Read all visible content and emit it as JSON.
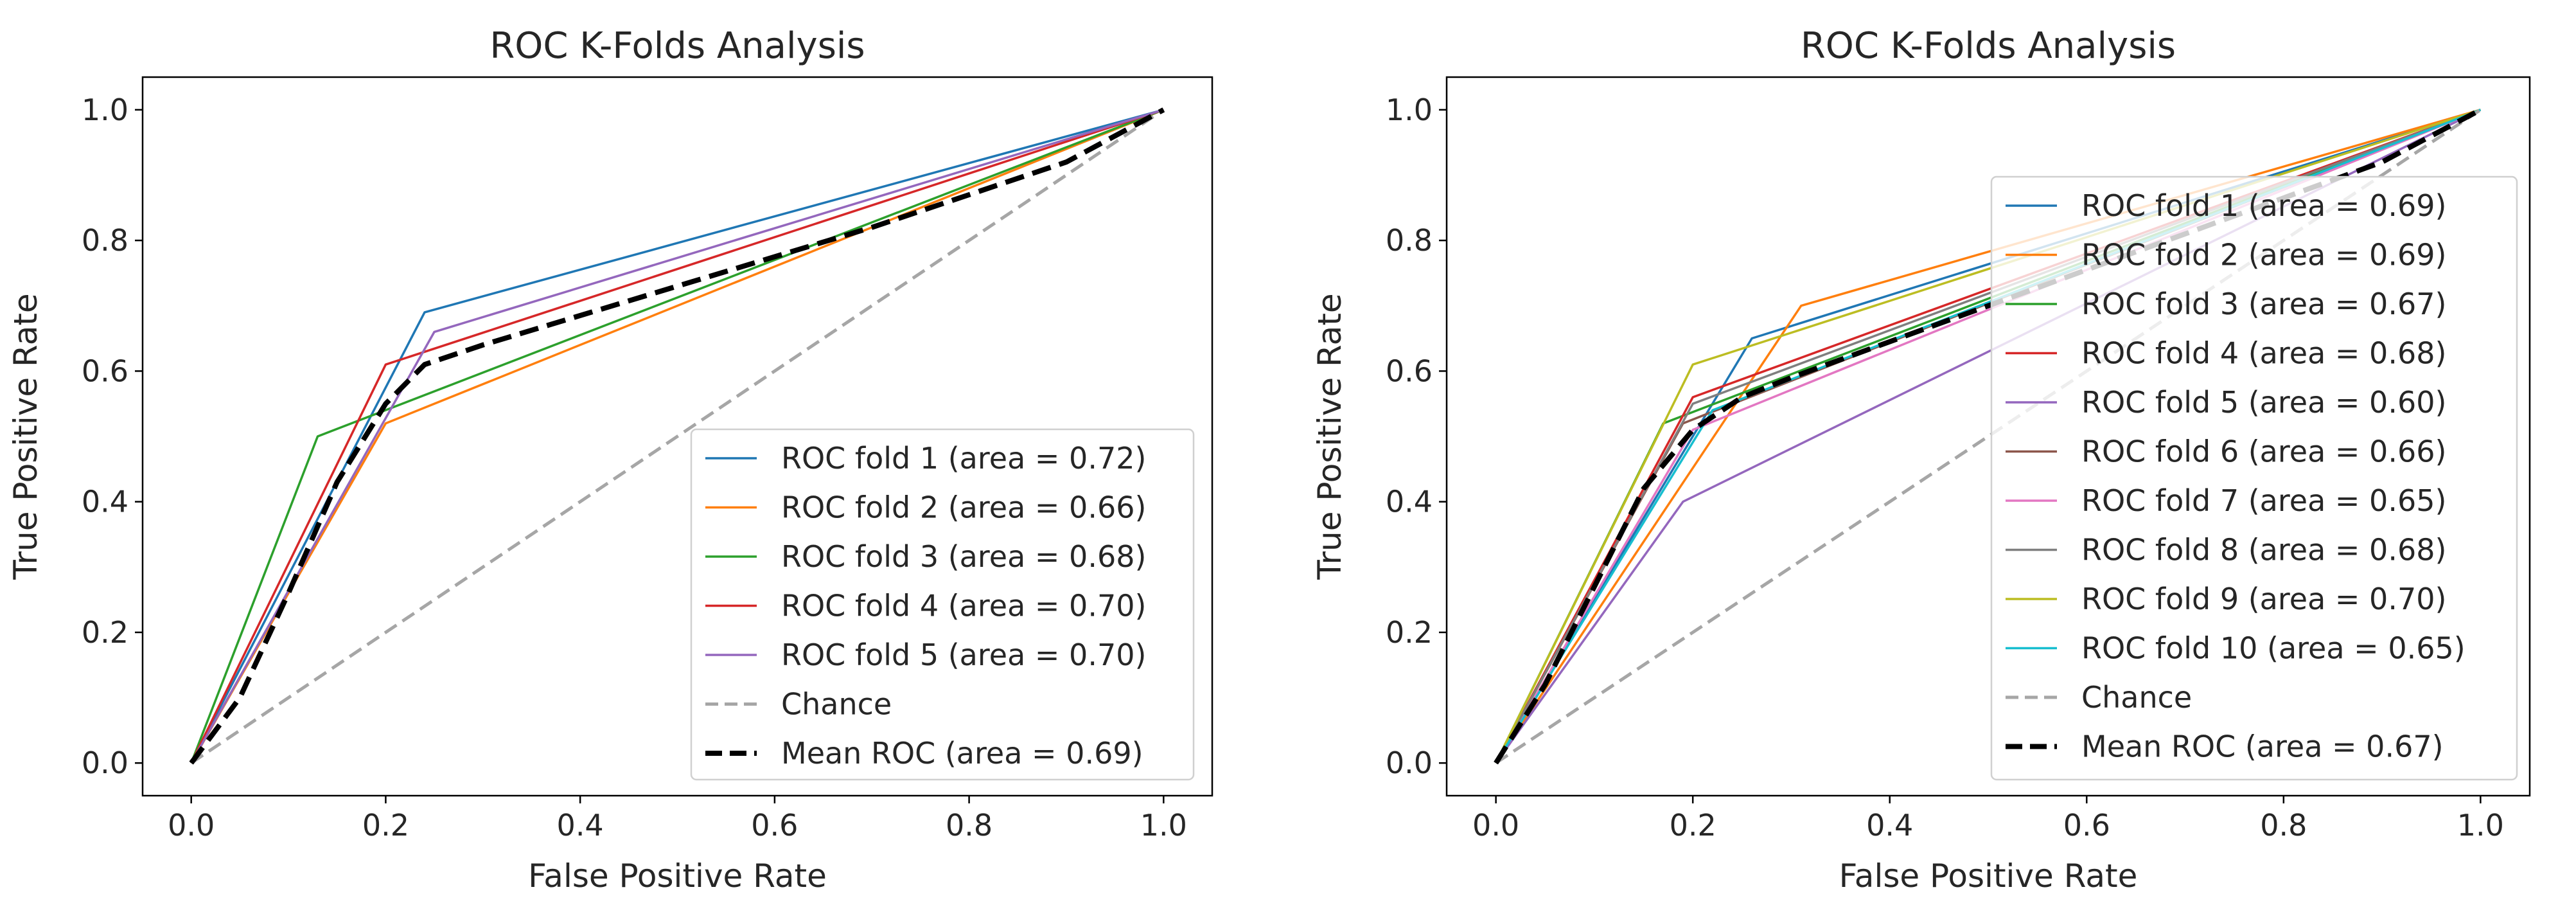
{
  "chart_data": [
    {
      "type": "line",
      "title": "ROC K-Folds Analysis",
      "xlabel": "False Positive Rate",
      "ylabel": "True Positive Rate",
      "xlim": [
        -0.05,
        1.05
      ],
      "ylim": [
        -0.05,
        1.05
      ],
      "xticks": [
        "0.0",
        "0.2",
        "0.4",
        "0.6",
        "0.8",
        "1.0"
      ],
      "yticks": [
        "0.0",
        "0.2",
        "0.4",
        "0.6",
        "0.8",
        "1.0"
      ],
      "grid": false,
      "legend_position": "lower-right",
      "series": [
        {
          "name": "ROC fold 1 (area = 0.72)",
          "color": "#1f77b4",
          "style": "solid",
          "x": [
            0,
            0.24,
            1
          ],
          "y": [
            0,
            0.69,
            1
          ]
        },
        {
          "name": "ROC fold 2 (area = 0.66)",
          "color": "#ff7f0e",
          "style": "solid",
          "x": [
            0,
            0.2,
            1
          ],
          "y": [
            0,
            0.52,
            1
          ]
        },
        {
          "name": "ROC fold 3 (area = 0.68)",
          "color": "#2ca02c",
          "style": "solid",
          "x": [
            0,
            0.13,
            1
          ],
          "y": [
            0,
            0.5,
            1
          ]
        },
        {
          "name": "ROC fold 4 (area = 0.70)",
          "color": "#d62728",
          "style": "solid",
          "x": [
            0,
            0.2,
            1
          ],
          "y": [
            0,
            0.61,
            1
          ]
        },
        {
          "name": "ROC fold 5 (area = 0.70)",
          "color": "#9467bd",
          "style": "solid",
          "x": [
            0,
            0.25,
            1
          ],
          "y": [
            0,
            0.66,
            1
          ]
        },
        {
          "name": "Chance",
          "color": "#a6a6a6",
          "style": "dashed",
          "x": [
            0,
            1
          ],
          "y": [
            0,
            1
          ]
        },
        {
          "name": "Mean ROC (area = 0.69)",
          "color": "#000000",
          "style": "mean",
          "x": [
            0,
            0.05,
            0.1,
            0.15,
            0.2,
            0.24,
            0.3,
            0.5,
            0.7,
            0.9,
            1
          ],
          "y": [
            0,
            0.1,
            0.26,
            0.43,
            0.55,
            0.61,
            0.64,
            0.73,
            0.82,
            0.92,
            1
          ]
        }
      ]
    },
    {
      "type": "line",
      "title": "ROC K-Folds Analysis",
      "xlabel": "False Positive Rate",
      "ylabel": "True Positive Rate",
      "xlim": [
        -0.05,
        1.05
      ],
      "ylim": [
        -0.05,
        1.05
      ],
      "xticks": [
        "0.0",
        "0.2",
        "0.4",
        "0.6",
        "0.8",
        "1.0"
      ],
      "yticks": [
        "0.0",
        "0.2",
        "0.4",
        "0.6",
        "0.8",
        "1.0"
      ],
      "grid": false,
      "legend_position": "center-right",
      "series": [
        {
          "name": "ROC fold 1 (area = 0.69)",
          "color": "#1f77b4",
          "style": "solid",
          "x": [
            0,
            0.26,
            1
          ],
          "y": [
            0,
            0.65,
            1
          ]
        },
        {
          "name": "ROC fold 2 (area = 0.69)",
          "color": "#ff7f0e",
          "style": "solid",
          "x": [
            0,
            0.31,
            1
          ],
          "y": [
            0,
            0.7,
            1
          ]
        },
        {
          "name": "ROC fold 3 (area = 0.67)",
          "color": "#2ca02c",
          "style": "solid",
          "x": [
            0,
            0.17,
            1
          ],
          "y": [
            0,
            0.52,
            1
          ]
        },
        {
          "name": "ROC fold 4 (area = 0.68)",
          "color": "#d62728",
          "style": "solid",
          "x": [
            0,
            0.2,
            1
          ],
          "y": [
            0,
            0.56,
            1
          ]
        },
        {
          "name": "ROC fold 5 (area = 0.60)",
          "color": "#9467bd",
          "style": "solid",
          "x": [
            0,
            0.19,
            1
          ],
          "y": [
            0,
            0.4,
            1
          ]
        },
        {
          "name": "ROC fold 6 (area = 0.66)",
          "color": "#8c564b",
          "style": "solid",
          "x": [
            0,
            0.19,
            1
          ],
          "y": [
            0,
            0.52,
            1
          ]
        },
        {
          "name": "ROC fold 7 (area = 0.65)",
          "color": "#e377c2",
          "style": "solid",
          "x": [
            0,
            0.2,
            1
          ],
          "y": [
            0,
            0.51,
            1
          ]
        },
        {
          "name": "ROC fold 8 (area = 0.68)",
          "color": "#7f7f7f",
          "style": "solid",
          "x": [
            0,
            0.2,
            1
          ],
          "y": [
            0,
            0.55,
            1
          ]
        },
        {
          "name": "ROC fold 9 (area = 0.70)",
          "color": "#bcbd22",
          "style": "solid",
          "x": [
            0,
            0.2,
            1
          ],
          "y": [
            0,
            0.61,
            1
          ]
        },
        {
          "name": "ROC fold 10 (area = 0.65)",
          "color": "#17becf",
          "style": "solid",
          "x": [
            0,
            0.22,
            1
          ],
          "y": [
            0,
            0.54,
            1
          ]
        },
        {
          "name": "Chance",
          "color": "#a6a6a6",
          "style": "dashed",
          "x": [
            0,
            1
          ],
          "y": [
            0,
            1
          ]
        },
        {
          "name": "Mean ROC (area = 0.67)",
          "color": "#000000",
          "style": "mean",
          "x": [
            0,
            0.05,
            0.1,
            0.15,
            0.2,
            0.25,
            0.3,
            0.5,
            0.7,
            0.9,
            1
          ],
          "y": [
            0,
            0.12,
            0.27,
            0.42,
            0.51,
            0.56,
            0.59,
            0.7,
            0.81,
            0.92,
            1
          ]
        }
      ]
    }
  ]
}
